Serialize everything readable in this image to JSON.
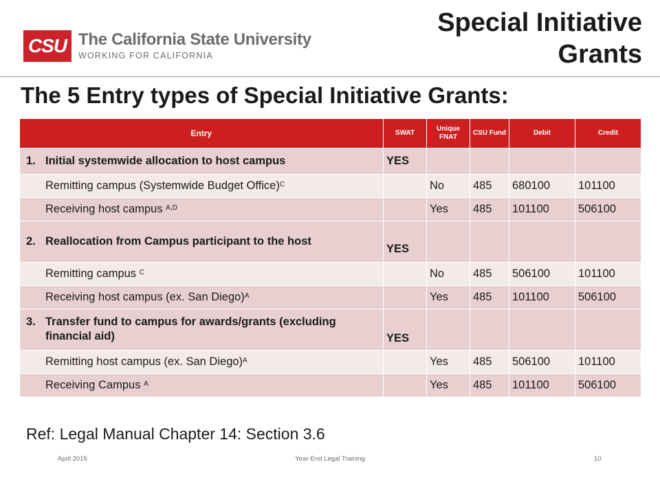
{
  "logo": {
    "mark": "CSU",
    "name": "The California State University",
    "tagline": "WORKING FOR CALIFORNIA"
  },
  "slide_title": "Special Initiative Grants",
  "heading": "The 5 Entry types of Special Initiative Grants:",
  "table": {
    "headers": [
      "Entry",
      "SWAT",
      "Unique FNAT",
      "CSU Fund",
      "Debit",
      "Credit"
    ],
    "rows": [
      {
        "kind": "sec",
        "num": "1.",
        "entry": "Initial systemwide allocation to host campus",
        "sup": "",
        "swat": "YES",
        "unique": "",
        "fund": "",
        "debit": "",
        "credit": ""
      },
      {
        "kind": "odd",
        "num": "",
        "entry": "Remitting campus (Systemwide Budget Office)",
        "sup": "C",
        "swat": "",
        "unique": "No",
        "fund": "485",
        "debit": "680100",
        "credit": "101100"
      },
      {
        "kind": "even",
        "num": "",
        "entry": "Receiving host campus ",
        "sup": "A,D",
        "swat": "",
        "unique": "Yes",
        "fund": "485",
        "debit": "101100",
        "credit": "506100"
      },
      {
        "kind": "sec",
        "num": "2.",
        "entry": "Reallocation from Campus participant to the host",
        "sup": "",
        "swat": "YES",
        "unique": "",
        "fund": "",
        "debit": "",
        "credit": ""
      },
      {
        "kind": "odd",
        "num": "",
        "entry": "Remitting campus ",
        "sup": "C",
        "swat": "",
        "unique": "No",
        "fund": "485",
        "debit": "506100",
        "credit": "101100"
      },
      {
        "kind": "even",
        "num": "",
        "entry": "Receiving host campus (ex. San Diego)",
        "sup": "A",
        "swat": "",
        "unique": "Yes",
        "fund": "485",
        "debit": "101100",
        "credit": "506100"
      },
      {
        "kind": "sec",
        "num": "3.",
        "entry": "Transfer fund to campus for awards/grants (excluding financial aid)",
        "sup": "",
        "swat": "YES",
        "unique": "",
        "fund": "",
        "debit": "",
        "credit": ""
      },
      {
        "kind": "odd",
        "num": "",
        "entry": "Remitting host campus (ex. San Diego)",
        "sup": "A",
        "swat": "",
        "unique": "Yes",
        "fund": "485",
        "debit": "506100",
        "credit": "101100"
      },
      {
        "kind": "even",
        "num": "",
        "entry": "Receiving Campus ",
        "sup": "A",
        "swat": "",
        "unique": "Yes",
        "fund": "485",
        "debit": "101100",
        "credit": "506100"
      }
    ]
  },
  "reference": "Ref: Legal Manual Chapter 14: Section 3.6",
  "footer": {
    "date": "April 2015",
    "center": "Year-End Legal Training",
    "page": "10"
  },
  "colors": {
    "brand_red": "#cc2229",
    "header_red": "#cc1f1f",
    "row_dark": "#e8cfd0",
    "row_light": "#f5eaea"
  }
}
